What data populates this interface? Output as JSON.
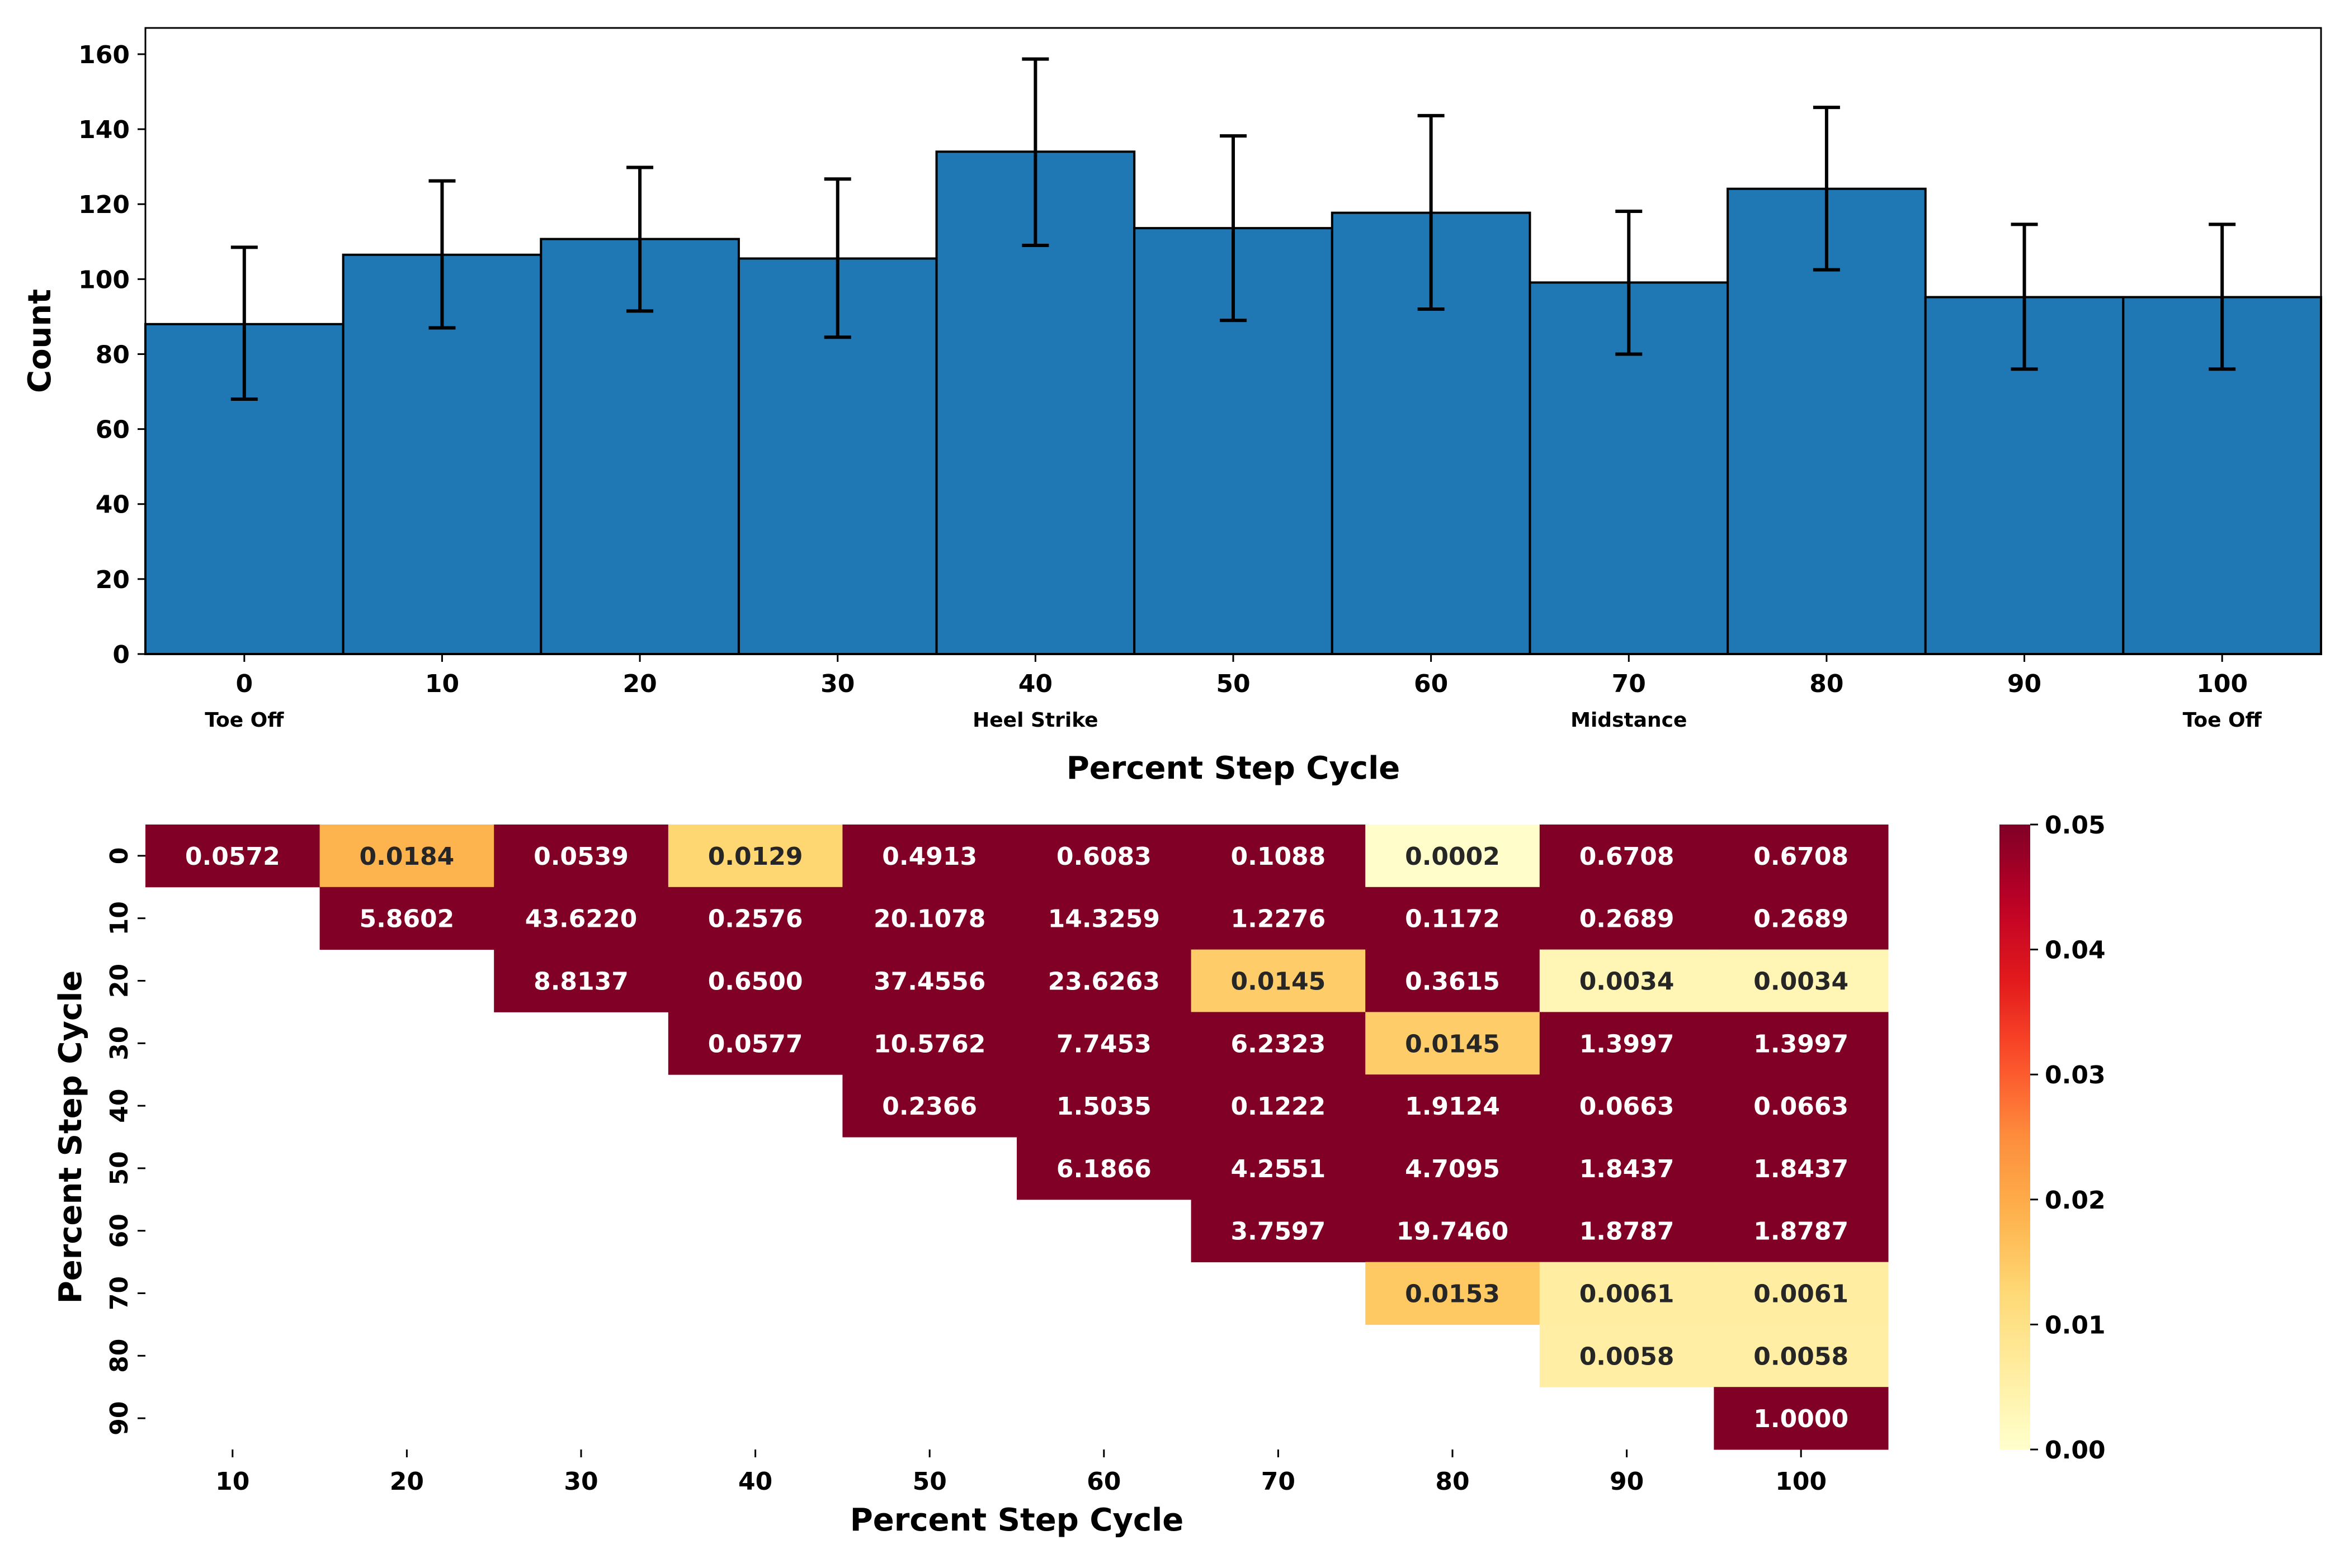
{
  "colors": {
    "bar_fill": "#1f77b4",
    "bar_edge": "#000000",
    "heat_dark": "#800026",
    "heat_orange": "#fd8d3c",
    "heat_yellow": "#ffffcc"
  },
  "chart_data": [
    {
      "type": "bar",
      "xlabel": "Percent Step Cycle",
      "ylabel": "Count",
      "categories": [
        "0",
        "10",
        "20",
        "30",
        "40",
        "50",
        "60",
        "70",
        "80",
        "90",
        "100"
      ],
      "values": [
        88,
        106.5,
        110.7,
        105.5,
        134,
        113.6,
        117.7,
        99.1,
        124.1,
        95.2,
        95.2
      ],
      "error_low": [
        68,
        87,
        91.5,
        84.5,
        109,
        89,
        92,
        80,
        102.5,
        76,
        76
      ],
      "error_high": [
        108.5,
        126.2,
        129.8,
        126.7,
        158.7,
        138.2,
        143.6,
        118.1,
        145.8,
        114.6,
        114.6
      ],
      "ylim": [
        0,
        167
      ],
      "yticks": [
        "0",
        "20",
        "40",
        "60",
        "80",
        "100",
        "120",
        "140",
        "160"
      ],
      "phase_labels": [
        {
          "category": "0",
          "text": "Toe Off"
        },
        {
          "category": "40",
          "text": "Heel Strike"
        },
        {
          "category": "70",
          "text": "Midstance"
        },
        {
          "category": "100",
          "text": "Toe Off"
        }
      ],
      "grid": false
    },
    {
      "type": "heatmap",
      "xlabel": "Percent Step Cycle",
      "ylabel": "Percent Step Cycle",
      "x_categories": [
        "10",
        "20",
        "30",
        "40",
        "50",
        "60",
        "70",
        "80",
        "90",
        "100"
      ],
      "y_categories": [
        "0",
        "10",
        "20",
        "30",
        "40",
        "50",
        "60",
        "70",
        "80",
        "90"
      ],
      "cells": [
        [
          "0.0572",
          "0.0184",
          "0.0539",
          "0.0129",
          "0.4913",
          "0.6083",
          "0.1088",
          "0.0002",
          "0.6708",
          "0.6708"
        ],
        [
          null,
          "5.8602",
          "43.6220",
          "0.2576",
          "20.1078",
          "14.3259",
          "1.2276",
          "0.1172",
          "0.2689",
          "0.2689"
        ],
        [
          null,
          null,
          "8.8137",
          "0.6500",
          "37.4556",
          "23.6263",
          "0.0145",
          "0.3615",
          "0.0034",
          "0.0034"
        ],
        [
          null,
          null,
          null,
          "0.0577",
          "10.5762",
          "7.7453",
          "6.2323",
          "0.0145",
          "1.3997",
          "1.3997"
        ],
        [
          null,
          null,
          null,
          null,
          "0.2366",
          "1.5035",
          "0.1222",
          "1.9124",
          "0.0663",
          "0.0663"
        ],
        [
          null,
          null,
          null,
          null,
          null,
          "6.1866",
          "4.2551",
          "4.7095",
          "1.8437",
          "1.8437"
        ],
        [
          null,
          null,
          null,
          null,
          null,
          null,
          "3.7597",
          "19.7460",
          "1.8787",
          "1.8787"
        ],
        [
          null,
          null,
          null,
          null,
          null,
          null,
          null,
          "0.0153",
          "0.0061",
          "0.0061"
        ],
        [
          null,
          null,
          null,
          null,
          null,
          null,
          null,
          null,
          "0.0058",
          "0.0058"
        ],
        [
          null,
          null,
          null,
          null,
          null,
          null,
          null,
          null,
          null,
          "1.0000"
        ]
      ],
      "colorbar": {
        "range": [
          0,
          0.05
        ],
        "ticks": [
          "0.00",
          "0.01",
          "0.02",
          "0.03",
          "0.04",
          "0.05"
        ],
        "colormap": "YlOrRd"
      }
    }
  ]
}
